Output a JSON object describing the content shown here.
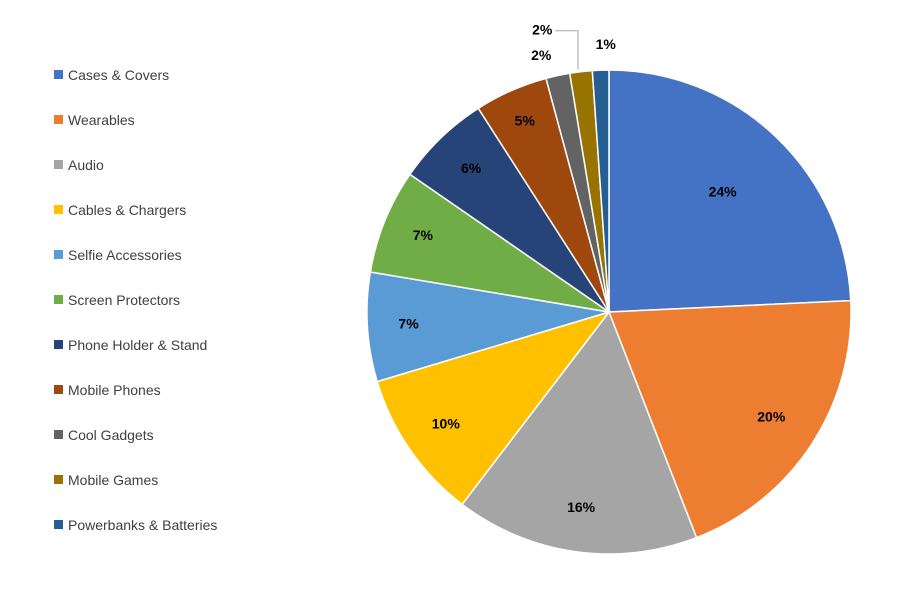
{
  "chart_data": {
    "type": "pie",
    "title": "",
    "legend_position": "left",
    "slices": [
      {
        "name": "Cases & Covers",
        "value": 24.3,
        "label": "24%",
        "color": "#4472C4"
      },
      {
        "name": "Wearables",
        "value": 19.9,
        "label": "20%",
        "color": "#ED7D31"
      },
      {
        "name": "Audio",
        "value": 16.3,
        "label": "16%",
        "color": "#A5A5A5"
      },
      {
        "name": "Cables & Chargers",
        "value": 10.0,
        "label": "10%",
        "color": "#FFC000"
      },
      {
        "name": "Selfie Accessories",
        "value": 7.3,
        "label": "7%",
        "color": "#5B9BD5"
      },
      {
        "name": "Screen Protectors",
        "value": 7.0,
        "label": "7%",
        "color": "#70AD47"
      },
      {
        "name": "Phone Holder & Stand",
        "value": 6.3,
        "label": "6%",
        "color": "#264478"
      },
      {
        "name": "Mobile Phones",
        "value": 4.9,
        "label": "5%",
        "color": "#9E480E"
      },
      {
        "name": "Cool Gadgets",
        "value": 1.6,
        "label": "2%",
        "color": "#636363"
      },
      {
        "name": "Mobile Games",
        "value": 1.5,
        "label": "2%",
        "color": "#997300"
      },
      {
        "name": "Powerbanks & Batteries",
        "value": 1.1,
        "label": "1%",
        "color": "#255E91"
      }
    ]
  }
}
